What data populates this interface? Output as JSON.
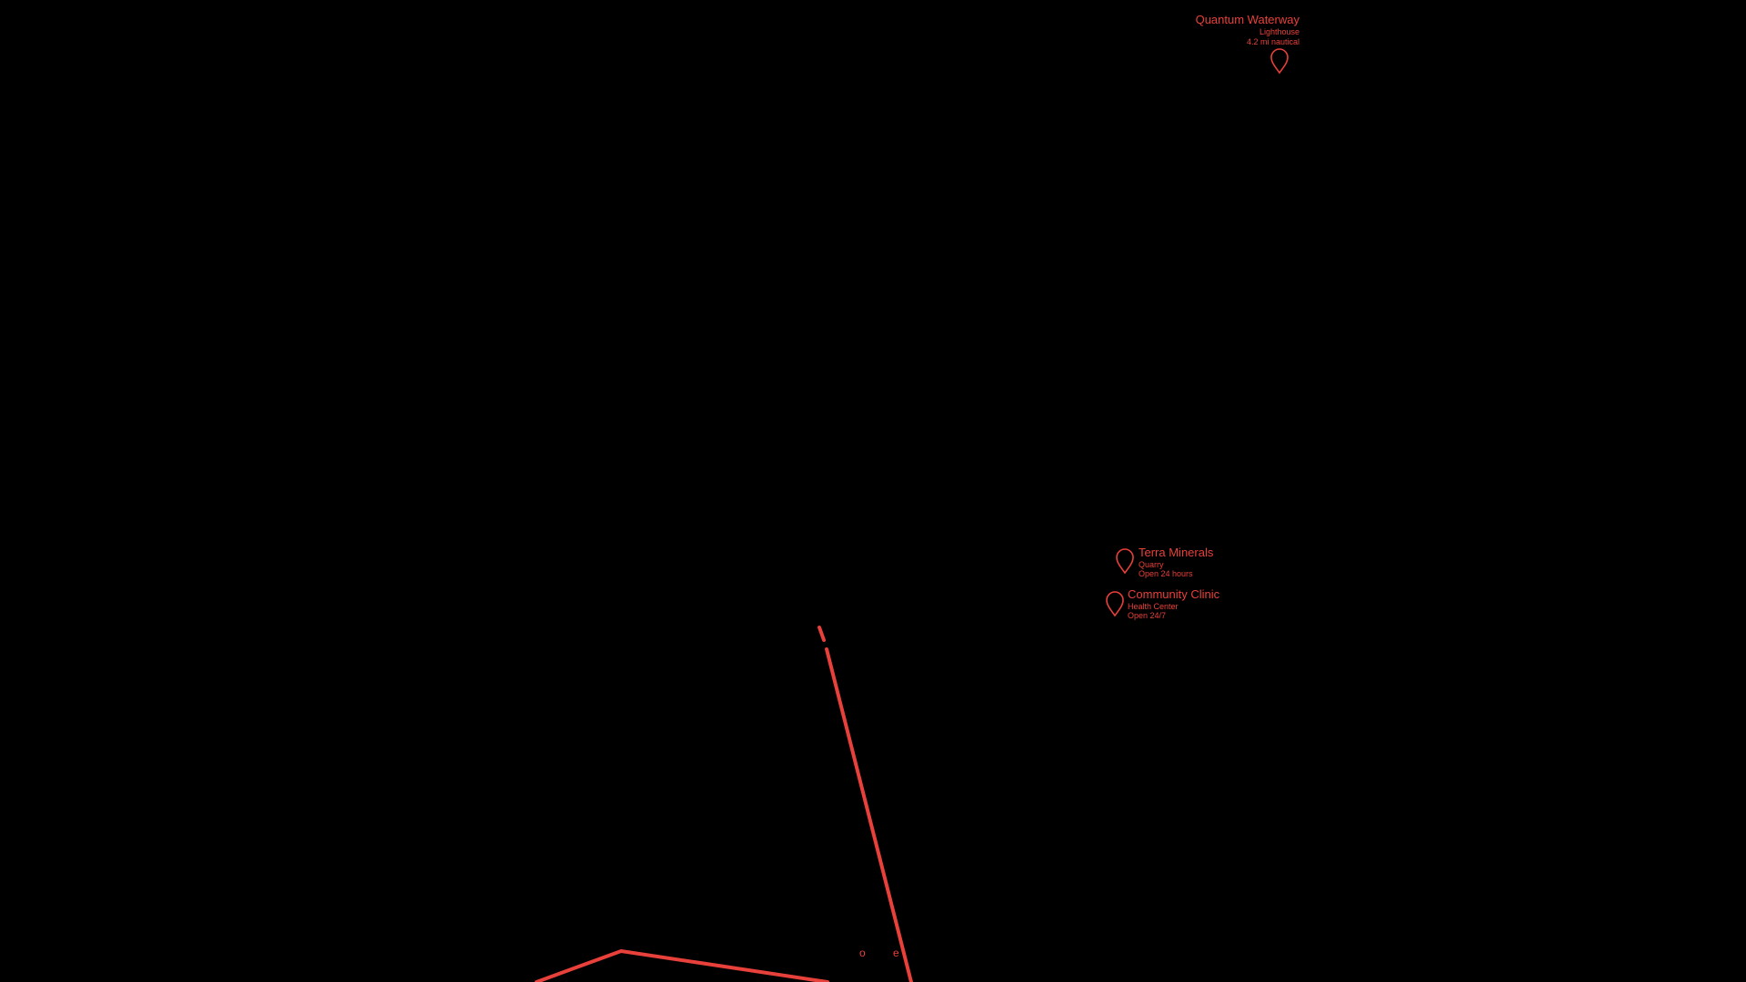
{
  "map": {
    "background_color": "#000000",
    "accent_color": "#e8403a",
    "road_labels": [
      {
        "text": "o"
      },
      {
        "text": "e"
      }
    ],
    "pois": [
      {
        "name": "Quantum Waterway",
        "lines": [
          "Lighthouse",
          "4.2 mi nautical"
        ],
        "icon": "map-pin-icon"
      },
      {
        "name": "Terra Minerals",
        "lines": [
          "Quarry",
          "Open 24 hours"
        ],
        "icon": "map-pin-icon"
      },
      {
        "name": "Community Clinic",
        "lines": [
          "Health Center",
          "Open 24/7"
        ],
        "icon": "map-pin-icon"
      }
    ]
  }
}
